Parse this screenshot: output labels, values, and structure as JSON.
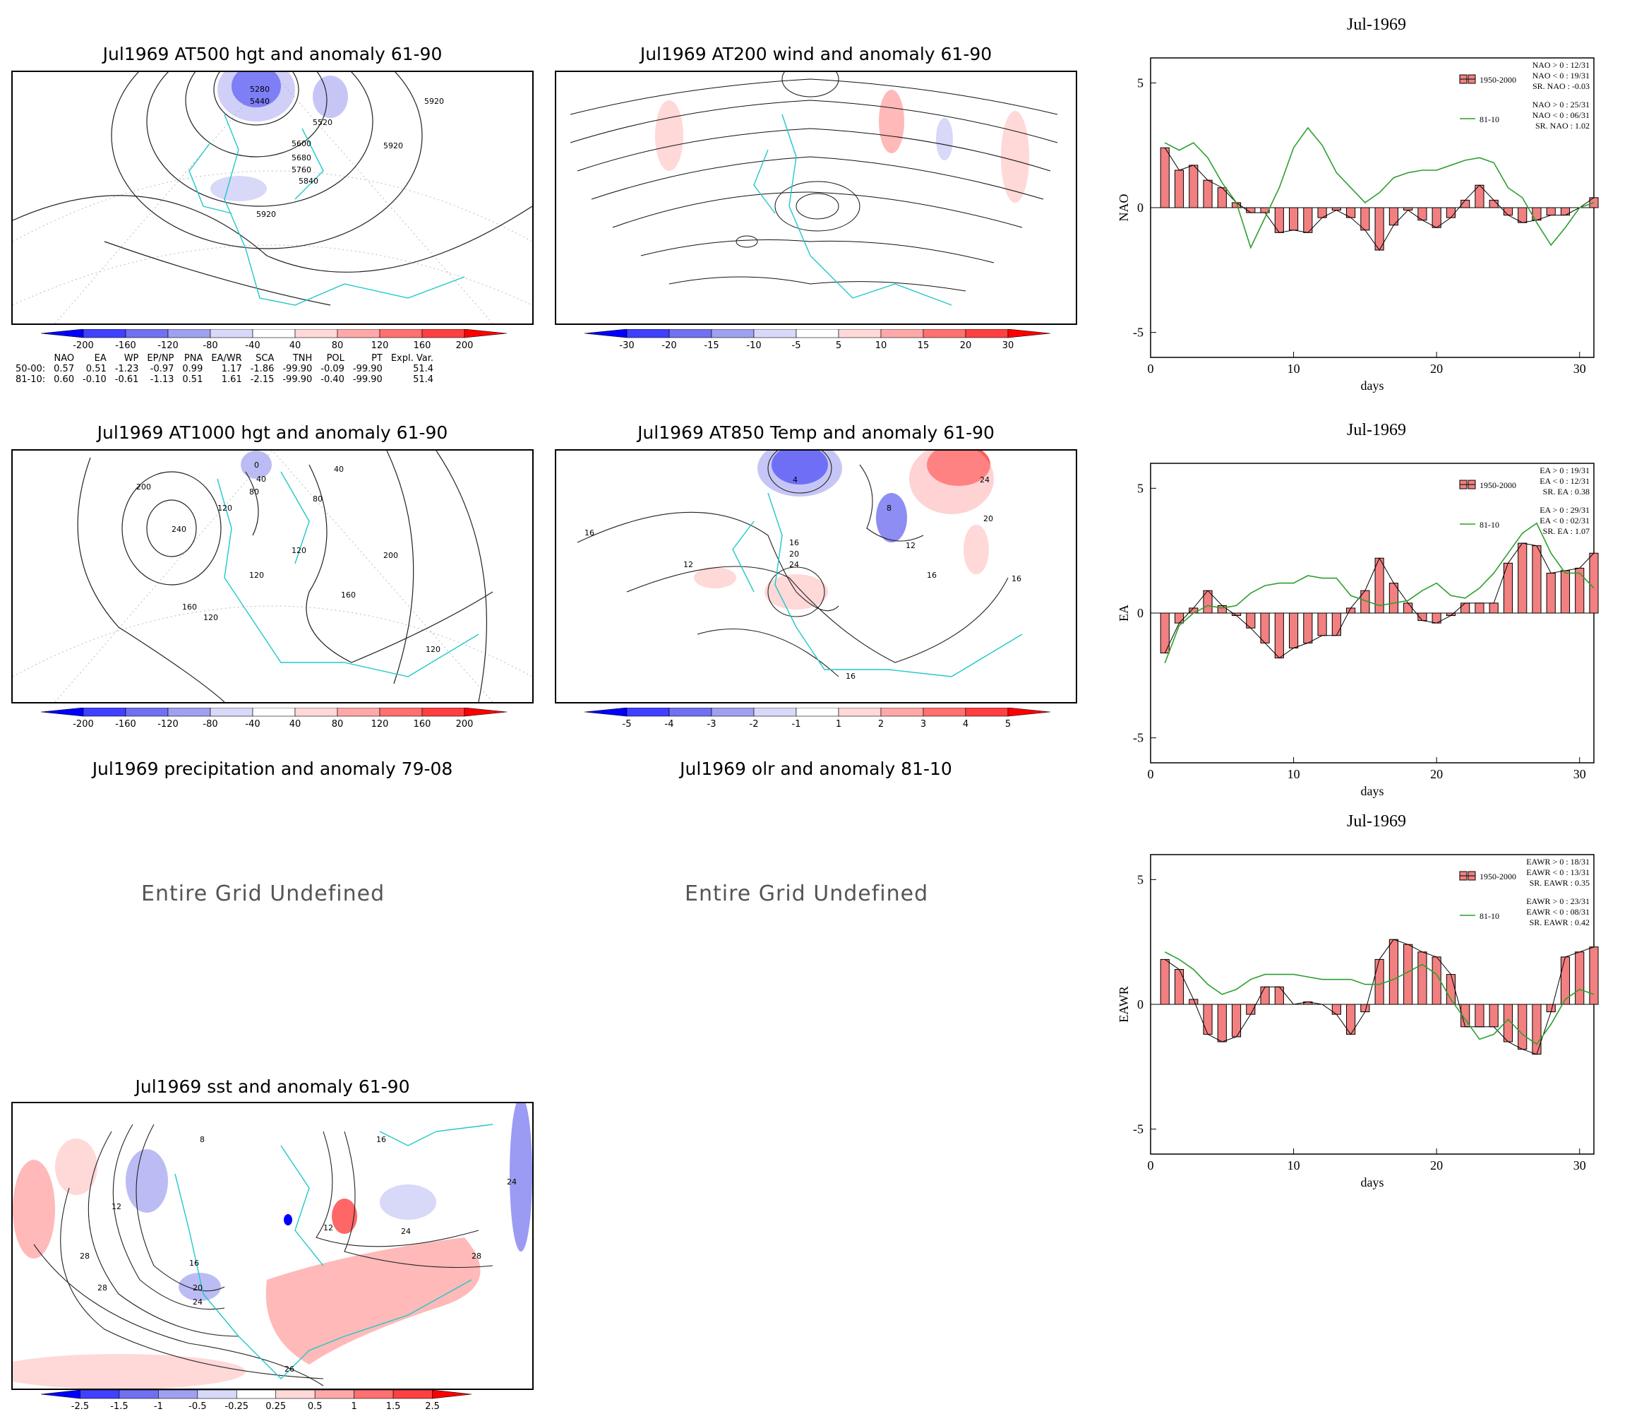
{
  "maps": [
    {
      "id": "at500",
      "title": "Jul1969 AT500 hgt and anomaly 61-90",
      "labels": [
        "5280",
        "5440",
        "5520",
        "5600",
        "5680",
        "5760",
        "5840",
        "5920",
        "5920",
        "5920"
      ]
    },
    {
      "id": "at200",
      "title": "Jul1969 AT200 wind and anomaly 61-90",
      "labels": []
    },
    {
      "id": "at1000",
      "title": "Jul1969 AT1000 hgt and anomaly 61-90",
      "labels": [
        "0",
        "40",
        "80",
        "80",
        "120",
        "120",
        "120",
        "160",
        "160",
        "200",
        "200",
        "240",
        "120",
        "120",
        "40"
      ]
    },
    {
      "id": "at850",
      "title": "Jul1969 AT850 Temp and anomaly 61-90",
      "labels": [
        "4",
        "8",
        "12",
        "16",
        "20",
        "24",
        "16",
        "12",
        "16",
        "16",
        "24",
        "20",
        "16"
      ]
    },
    {
      "id": "sst",
      "title": "Jul1969 sst and anomaly 61-90",
      "labels": [
        "8",
        "12",
        "16",
        "20",
        "24",
        "28",
        "28",
        "26",
        "24",
        "28",
        "16",
        "12",
        "24"
      ]
    }
  ],
  "undefined_panels": [
    {
      "id": "precip",
      "title": "Jul1969 precipitation and anomaly 79-08",
      "message": "Entire Grid Undefined"
    },
    {
      "id": "olr",
      "title": "Jul1969 olr and anomaly 81-10",
      "message": "Entire Grid Undefined"
    }
  ],
  "colorbars": {
    "hgt": [
      "-200",
      "-160",
      "-120",
      "-80",
      "-40",
      "40",
      "80",
      "120",
      "160",
      "200"
    ],
    "wind": [
      "-30",
      "-20",
      "-15",
      "-10",
      "-5",
      "5",
      "10",
      "15",
      "20",
      "30"
    ],
    "temp": [
      "-5",
      "-4",
      "-3",
      "-2",
      "-1",
      "1",
      "2",
      "3",
      "4",
      "5"
    ],
    "sst": [
      "-2.5",
      "-1.5",
      "-1",
      "-0.5",
      "-0.25",
      "0.25",
      "0.5",
      "1",
      "1.5",
      "2.5"
    ],
    "colors": [
      "#0000ff",
      "#4040ff",
      "#7070f0",
      "#a0a0f0",
      "#d8d8f8",
      "#ffffff",
      "#ffd8d8",
      "#ffa8a8",
      "#ff7070",
      "#ff4040",
      "#ff0000"
    ]
  },
  "index_table": {
    "headers": [
      "NAO",
      "EA",
      "WP",
      "EP/NP",
      "PNA",
      "EA/WR",
      "SCA",
      "TNH",
      "POL",
      "PT",
      "Expl. Var."
    ],
    "rows": [
      {
        "label": "50-00:",
        "values": [
          "0.57",
          "0.51",
          "-1.23",
          "-0.97",
          "0.99",
          "1.17",
          "-1.86",
          "-99.90",
          "-0.09",
          "-99.90",
          "51.4"
        ]
      },
      {
        "label": "81-10:",
        "values": [
          "0.60",
          "-0.10",
          "-0.61",
          "-1.13",
          "0.51",
          "1.61",
          "-2.15",
          "-99.90",
          "-0.40",
          "-99.90",
          "51.4"
        ]
      }
    ]
  },
  "chart_data": [
    {
      "type": "bar",
      "title": "Jul-1969",
      "ylabel": "NAO",
      "xlabel": "days",
      "xlim": [
        0,
        31
      ],
      "ylim": [
        -6,
        6
      ],
      "yticks": [
        "-5",
        "0",
        "5"
      ],
      "xticks": [
        "0",
        "10",
        "20",
        "30"
      ],
      "legend_bar": "1950-2000",
      "legend_line": "81-10",
      "stats_bar": [
        "NAO > 0 : 12/31",
        "NAO < 0 : 19/31",
        "SR. NAO : -0.03"
      ],
      "stats_line": [
        "NAO > 0 : 25/31",
        "NAO < 0 : 06/31",
        "SR. NAO : 1.02"
      ],
      "x": [
        1,
        2,
        3,
        4,
        5,
        6,
        7,
        8,
        9,
        10,
        11,
        12,
        13,
        14,
        15,
        16,
        17,
        18,
        19,
        20,
        21,
        22,
        23,
        24,
        25,
        26,
        27,
        28,
        29,
        30,
        31
      ],
      "bars": [
        2.4,
        1.5,
        1.7,
        1.1,
        0.8,
        0.2,
        -0.2,
        -0.2,
        -1.0,
        -0.9,
        -1.0,
        -0.4,
        -0.1,
        -0.4,
        -0.9,
        -1.7,
        -0.7,
        -0.1,
        -0.5,
        -0.8,
        -0.4,
        0.3,
        0.9,
        0.3,
        -0.3,
        -0.6,
        -0.5,
        -0.3,
        -0.3,
        0.0,
        0.4
      ],
      "line": [
        2.6,
        2.3,
        2.6,
        2.0,
        1.0,
        0.2,
        -1.6,
        -0.4,
        0.8,
        2.4,
        3.2,
        2.5,
        1.4,
        0.8,
        0.2,
        0.6,
        1.2,
        1.4,
        1.5,
        1.5,
        1.7,
        1.9,
        2.0,
        1.8,
        0.8,
        0.4,
        -0.6,
        -1.5,
        -0.8,
        0.0,
        0.2
      ]
    },
    {
      "type": "bar",
      "title": "Jul-1969",
      "ylabel": "EA",
      "xlabel": "days",
      "xlim": [
        0,
        31
      ],
      "ylim": [
        -6,
        6
      ],
      "yticks": [
        "-5",
        "0",
        "5"
      ],
      "xticks": [
        "0",
        "10",
        "20",
        "30"
      ],
      "legend_bar": "1950-2000",
      "legend_line": "81-10",
      "stats_bar": [
        "EA > 0 : 19/31",
        "EA < 0 : 12/31",
        "SR. EA : 0.38"
      ],
      "stats_line": [
        "EA > 0 : 29/31",
        "EA < 0 : 02/31",
        "SR. EA : 1.07"
      ],
      "x": [
        1,
        2,
        3,
        4,
        5,
        6,
        7,
        8,
        9,
        10,
        11,
        12,
        13,
        14,
        15,
        16,
        17,
        18,
        19,
        20,
        21,
        22,
        23,
        24,
        25,
        26,
        27,
        28,
        29,
        30,
        31
      ],
      "bars": [
        -1.6,
        -0.4,
        0.2,
        0.9,
        0.3,
        -0.1,
        -0.6,
        -1.2,
        -1.8,
        -1.4,
        -1.2,
        -0.9,
        -0.9,
        0.2,
        0.9,
        2.2,
        1.2,
        0.4,
        -0.3,
        -0.4,
        -0.1,
        0.4,
        0.4,
        0.4,
        2.0,
        2.8,
        2.7,
        1.6,
        1.7,
        1.8,
        2.4
      ],
      "line": [
        -2.0,
        -0.5,
        0.0,
        0.3,
        0.2,
        0.3,
        0.8,
        1.1,
        1.2,
        1.2,
        1.5,
        1.4,
        1.4,
        0.7,
        0.5,
        0.3,
        0.4,
        0.5,
        0.9,
        1.2,
        0.7,
        0.6,
        1.0,
        1.6,
        2.4,
        3.2,
        3.6,
        2.4,
        1.6,
        1.6,
        1.0
      ]
    },
    {
      "type": "bar",
      "title": "Jul-1969",
      "ylabel": "EAWR",
      "xlabel": "days",
      "xlim": [
        0,
        31
      ],
      "ylim": [
        -6,
        6
      ],
      "yticks": [
        "-5",
        "0",
        "5"
      ],
      "xticks": [
        "0",
        "10",
        "20",
        "30"
      ],
      "legend_bar": "1950-2000",
      "legend_line": "81-10",
      "stats_bar": [
        "EAWR > 0 : 18/31",
        "EAWR < 0 : 13/31",
        "SR. EAWR : 0.35"
      ],
      "stats_line": [
        "EAWR > 0 : 23/31",
        "EAWR < 0 : 08/31",
        "SR. EAWR : 0.42"
      ],
      "x": [
        1,
        2,
        3,
        4,
        5,
        6,
        7,
        8,
        9,
        10,
        11,
        12,
        13,
        14,
        15,
        16,
        17,
        18,
        19,
        20,
        21,
        22,
        23,
        24,
        25,
        26,
        27,
        28,
        29,
        30,
        31
      ],
      "bars": [
        1.8,
        1.4,
        0.2,
        -1.2,
        -1.5,
        -1.3,
        -0.4,
        0.7,
        0.7,
        0.0,
        0.1,
        0.0,
        -0.4,
        -1.2,
        -0.3,
        1.8,
        2.6,
        2.4,
        2.1,
        1.9,
        1.2,
        -0.9,
        -0.9,
        -0.9,
        -1.5,
        -1.8,
        -2.0,
        -0.3,
        1.9,
        2.1,
        2.3
      ],
      "line": [
        2.1,
        1.8,
        1.4,
        0.8,
        0.4,
        0.6,
        1.0,
        1.2,
        1.2,
        1.2,
        1.1,
        1.0,
        1.0,
        1.0,
        0.8,
        0.8,
        1.0,
        1.3,
        1.6,
        1.2,
        0.2,
        -0.6,
        -1.4,
        -1.2,
        -0.6,
        -1.2,
        -1.6,
        -0.8,
        0.2,
        0.6,
        0.4
      ]
    }
  ]
}
